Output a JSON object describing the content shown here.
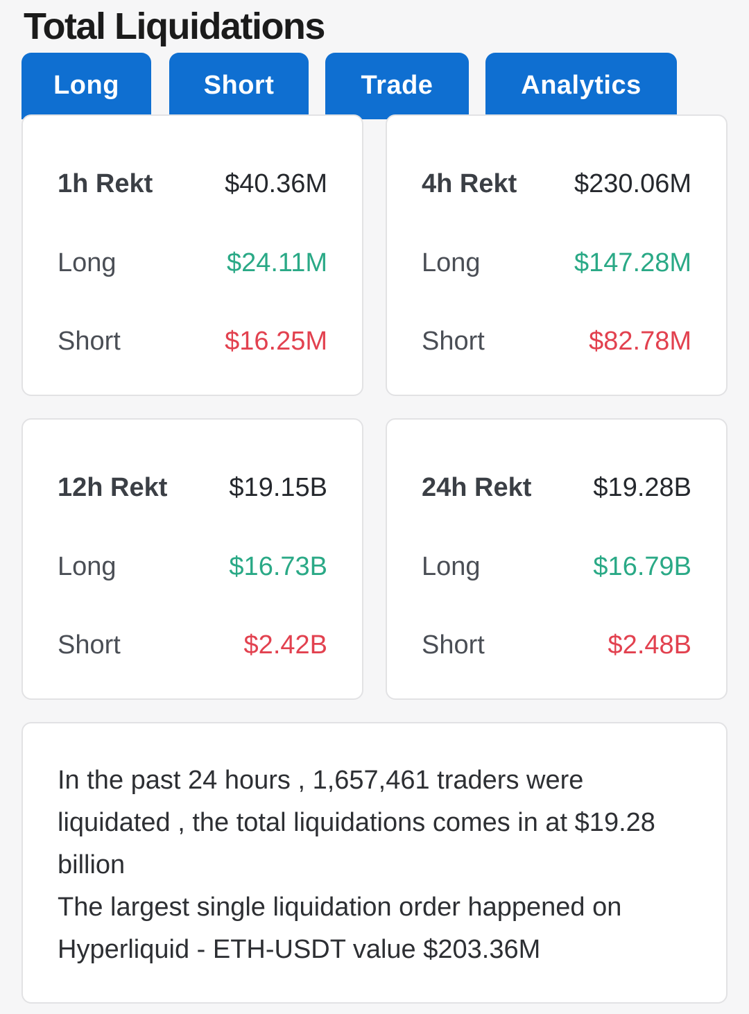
{
  "page": {
    "title": "Total Liquidations"
  },
  "tabs": [
    {
      "label": "Long"
    },
    {
      "label": "Short"
    },
    {
      "label": "Trade"
    },
    {
      "label": "Analytics"
    }
  ],
  "stats": {
    "h1": {
      "label": "1h Rekt",
      "total": "$40.36M",
      "long_label": "Long",
      "long": "$24.11M",
      "short_label": "Short",
      "short": "$16.25M"
    },
    "h4": {
      "label": "4h Rekt",
      "total": "$230.06M",
      "long_label": "Long",
      "long": "$147.28M",
      "short_label": "Short",
      "short": "$82.78M"
    },
    "h12": {
      "label": "12h Rekt",
      "total": "$19.15B",
      "long_label": "Long",
      "long": "$16.73B",
      "short_label": "Short",
      "short": "$2.42B"
    },
    "h24": {
      "label": "24h Rekt",
      "total": "$19.28B",
      "long_label": "Long",
      "long": "$16.79B",
      "short_label": "Short",
      "short": "$2.48B"
    }
  },
  "summary": {
    "line1": "In the past 24 hours , 1,657,461 traders were liquidated , the total liquidations comes in at $19.28 billion",
    "line2": "The largest single liquidation order happened on Hyperliquid - ETH-USDT value $203.36M"
  },
  "colors": {
    "accent": "#0f6fd1",
    "long": "#2aa986",
    "short": "#e2414f"
  }
}
